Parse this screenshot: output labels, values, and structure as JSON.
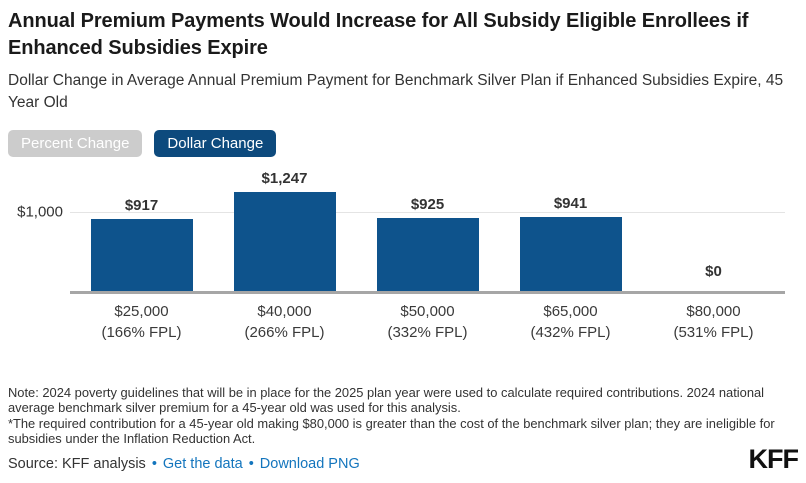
{
  "header": {
    "title": "Annual Premium Payments Would Increase for All Subsidy Eligible Enrollees if Enhanced Subsidies Expire",
    "subtitle": "Dollar Change in Average Annual Premium Payment for Benchmark Silver Plan if Enhanced Subsidies Expire, 45 Year Old"
  },
  "toggles": {
    "percent": {
      "label": "Percent Change",
      "active": false
    },
    "dollar": {
      "label": "Dollar Change",
      "active": true
    }
  },
  "chart_data": {
    "type": "bar",
    "title": "Dollar Change in Average Annual Premium Payment for Benchmark Silver Plan if Enhanced Subsidies Expire, 45 Year Old",
    "categories": [
      {
        "income": "$25,000",
        "fpl": "(166% FPL)"
      },
      {
        "income": "$40,000",
        "fpl": "(266% FPL)"
      },
      {
        "income": "$50,000",
        "fpl": "(332% FPL)"
      },
      {
        "income": "$65,000",
        "fpl": "(432% FPL)"
      },
      {
        "income": "$80,000",
        "fpl": "(531% FPL)"
      }
    ],
    "values": [
      917,
      1247,
      925,
      941,
      0
    ],
    "value_labels": [
      "$917",
      "$1,247",
      "$925",
      "$941",
      "$0"
    ],
    "ylim": [
      0,
      1270
    ],
    "gridline": {
      "value": 1000,
      "label": "$1,000"
    },
    "grid": "single horizontal line at $1,000",
    "legend_position": "none",
    "bar_color": "#0e538c"
  },
  "footer": {
    "note": "Note: 2024 poverty guidelines that will be in place for the 2025 plan year were used to calculate required contributions. 2024 national average benchmark silver premium for a 45-year old was used for this analysis.",
    "footnote": "*The required contribution for a 45-year old making $80,000 is greater than the cost of the benchmark silver plan; they are ineligible for subsidies under the Inflation Reduction Act.",
    "source": "Source: KFF analysis",
    "separator": "•",
    "link_get_data": "Get the data",
    "link_download": "Download PNG",
    "logo": "KFF"
  },
  "colors": {
    "bar": "#0e538c",
    "active_button": "#0d4a7d",
    "inactive_button": "#cccccc",
    "link": "#1375bd",
    "gridline": "#e4e4e4",
    "axis_line": "#a6a6a6",
    "text": "#333333",
    "title_text": "#1a1a1a"
  }
}
